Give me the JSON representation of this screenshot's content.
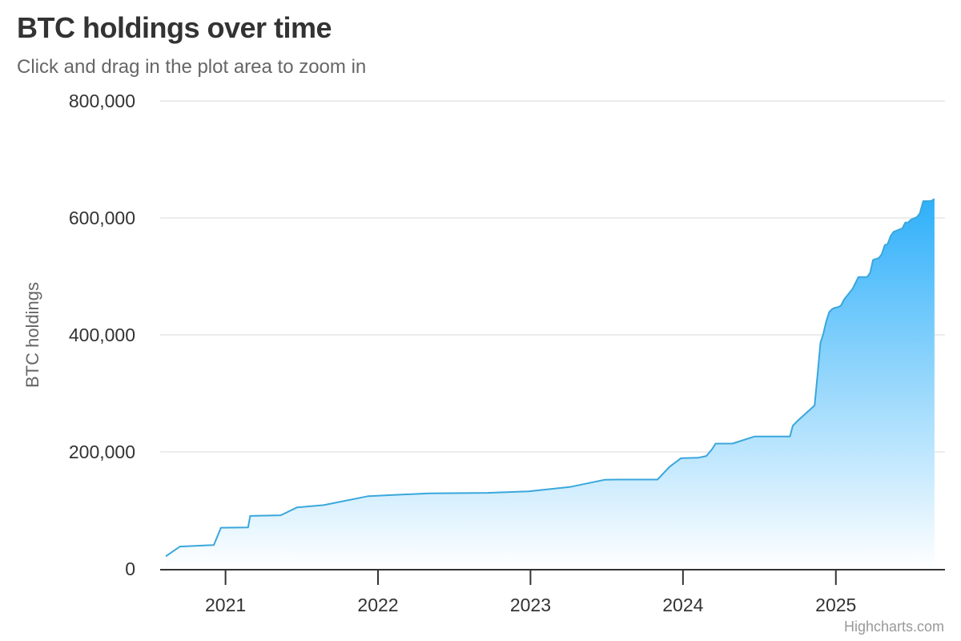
{
  "chart_data": {
    "type": "area",
    "title": "BTC holdings over time",
    "subtitle": "Click and drag in the plot area to zoom in",
    "xlabel": "",
    "ylabel": "BTC holdings",
    "xlim": [
      "2020-08-11",
      "2025-08-31"
    ],
    "ylim": [
      0,
      800000
    ],
    "x_ticks": [
      "2021",
      "2022",
      "2023",
      "2024",
      "2025"
    ],
    "y_ticks": [
      "0",
      "200,000",
      "400,000",
      "600,000",
      "800,000"
    ],
    "grid": true,
    "legend": "none",
    "credits": "Highcharts.com",
    "colors": {
      "line": "#3aa7dc",
      "fill_top": "#2fb0fa",
      "fill_bottom": "#ffffff",
      "grid": "#e6e6e6",
      "axis": "#333333"
    },
    "series": [
      {
        "x": [
          "2020-08-11",
          "2020-09-14",
          "2020-12-04",
          "2020-12-21",
          "2021-02-24",
          "2021-03-01",
          "2021-05-13",
          "2021-06-21",
          "2021-08-24",
          "2021-12-09",
          "2022-05-03",
          "2022-09-20",
          "2022-12-27",
          "2023-04-05",
          "2023-06-27",
          "2023-07-31",
          "2023-09-24",
          "2023-11-01",
          "2023-11-30",
          "2023-12-27",
          "2024-02-06",
          "2024-02-26",
          "2024-03-11",
          "2024-03-19",
          "2024-04-29",
          "2024-06-20",
          "2024-09-13",
          "2024-09-20",
          "2024-09-30",
          "2024-11-11",
          "2024-11-18",
          "2024-11-25",
          "2024-12-02",
          "2024-12-09",
          "2024-12-16",
          "2024-12-23",
          "2024-12-30",
          "2025-01-06",
          "2025-01-13",
          "2025-01-21",
          "2025-02-10",
          "2025-02-24",
          "2025-03-17",
          "2025-03-24",
          "2025-03-31",
          "2025-04-14",
          "2025-04-21",
          "2025-04-28",
          "2025-05-05",
          "2025-05-12",
          "2025-05-19",
          "2025-06-02",
          "2025-06-09",
          "2025-06-16",
          "2025-06-23",
          "2025-06-30",
          "2025-07-14",
          "2025-07-21",
          "2025-07-29",
          "2025-08-11",
          "2025-08-18",
          "2025-08-25"
        ],
        "values": [
          21454,
          38250,
          40824,
          70470,
          70784,
          90531,
          91579,
          105085,
          108992,
          124391,
          129218,
          130000,
          132500,
          140000,
          152333,
          152800,
          152800,
          152800,
          174530,
          189150,
          190000,
          193000,
          205000,
          214246,
          214400,
          226331,
          226500,
          244800,
          252220,
          279420,
          331200,
          386700,
          402100,
          423650,
          439000,
          444262,
          446400,
          447470,
          450000,
          461000,
          478740,
          499096,
          499226,
          506137,
          528185,
          531644,
          538200,
          553555,
          555450,
          568840,
          576230,
          580250,
          582000,
          592100,
          592345,
          597325,
          601550,
          607770,
          628791,
          628946,
          629376,
          632457
        ]
      }
    ]
  }
}
